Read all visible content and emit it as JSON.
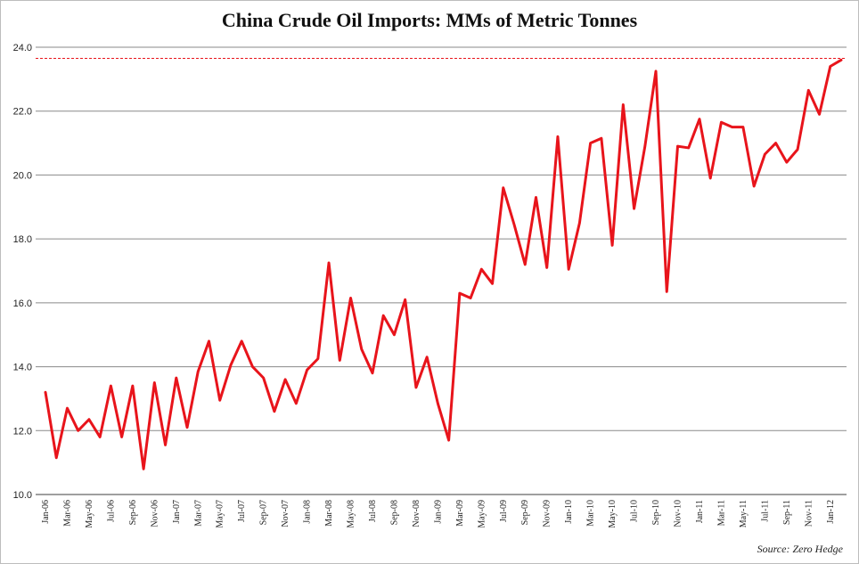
{
  "chart_data": {
    "type": "line",
    "title": "China Crude Oil Imports: MMs of Metric Tonnes",
    "source": "Source: Zero Hedge",
    "xlabel": "",
    "ylabel": "",
    "ylim": [
      10.0,
      24.0
    ],
    "yticks": [
      "10.0",
      "12.0",
      "14.0",
      "16.0",
      "18.0",
      "20.0",
      "22.0",
      "24.0"
    ],
    "grid": true,
    "legend": "none",
    "line_color": "#e8141b",
    "reference_line": {
      "value": 23.65,
      "color": "#e8141b",
      "style": "dashed"
    },
    "x": [
      "Jan-06",
      "Feb-06",
      "Mar-06",
      "Apr-06",
      "May-06",
      "Jun-06",
      "Jul-06",
      "Aug-06",
      "Sep-06",
      "Oct-06",
      "Nov-06",
      "Dec-06",
      "Jan-07",
      "Feb-07",
      "Mar-07",
      "Apr-07",
      "May-07",
      "Jun-07",
      "Jul-07",
      "Aug-07",
      "Sep-07",
      "Oct-07",
      "Nov-07",
      "Dec-07",
      "Jan-08",
      "Feb-08",
      "Mar-08",
      "Apr-08",
      "May-08",
      "Jun-08",
      "Jul-08",
      "Aug-08",
      "Sep-08",
      "Oct-08",
      "Nov-08",
      "Dec-08",
      "Jan-09",
      "Feb-09",
      "Mar-09",
      "Apr-09",
      "May-09",
      "Jun-09",
      "Jul-09",
      "Aug-09",
      "Sep-09",
      "Oct-09",
      "Nov-09",
      "Dec-09",
      "Jan-10",
      "Feb-10",
      "Mar-10",
      "Apr-10",
      "May-10",
      "Jun-10",
      "Jul-10",
      "Aug-10",
      "Sep-10",
      "Oct-10",
      "Nov-10",
      "Dec-10",
      "Jan-11",
      "Feb-11",
      "Mar-11",
      "Apr-11",
      "May-11",
      "Jun-11",
      "Jul-11",
      "Aug-11",
      "Sep-11",
      "Oct-11",
      "Nov-11",
      "Dec-11",
      "Jan-12",
      "Feb-12"
    ],
    "xtick_labels": [
      "Jan-06",
      "Mar-06",
      "May-06",
      "Jul-06",
      "Sep-06",
      "Nov-06",
      "Jan-07",
      "Mar-07",
      "May-07",
      "Jul-07",
      "Sep-07",
      "Nov-07",
      "Jan-08",
      "Mar-08",
      "May-08",
      "Jul-08",
      "Sep-08",
      "Nov-08",
      "Jan-09",
      "Mar-09",
      "May-09",
      "Jul-09",
      "Sep-09",
      "Nov-09",
      "Jan-10",
      "Mar-10",
      "May-10",
      "Jul-10",
      "Sep-10",
      "Nov-10",
      "Jan-11",
      "Mar-11",
      "May-11",
      "Jul-11",
      "Sep-11",
      "Nov-11",
      "Jan-12"
    ],
    "series": [
      {
        "values": [
          13.2,
          11.15,
          12.7,
          12.0,
          12.35,
          11.8,
          13.4,
          11.8,
          13.4,
          10.8,
          13.5,
          11.55,
          13.65,
          12.1,
          13.85,
          14.8,
          12.95,
          14.05,
          14.8,
          14.0,
          13.65,
          12.6,
          13.6,
          12.85,
          13.9,
          14.25,
          17.25,
          14.2,
          16.15,
          14.55,
          13.8,
          15.6,
          15.0,
          16.1,
          13.35,
          14.3,
          12.85,
          11.7,
          16.3,
          16.15,
          17.05,
          16.6,
          19.6,
          18.45,
          17.2,
          19.3,
          17.1,
          21.2,
          17.05,
          18.5,
          21.0,
          21.15,
          17.8,
          22.2,
          18.95,
          20.9,
          23.25,
          16.35,
          20.9,
          20.85,
          21.75,
          19.9,
          21.65,
          21.5,
          21.5,
          19.65,
          20.65,
          21.0,
          20.4,
          20.8,
          22.65,
          21.9,
          23.4,
          23.6
        ]
      }
    ]
  }
}
